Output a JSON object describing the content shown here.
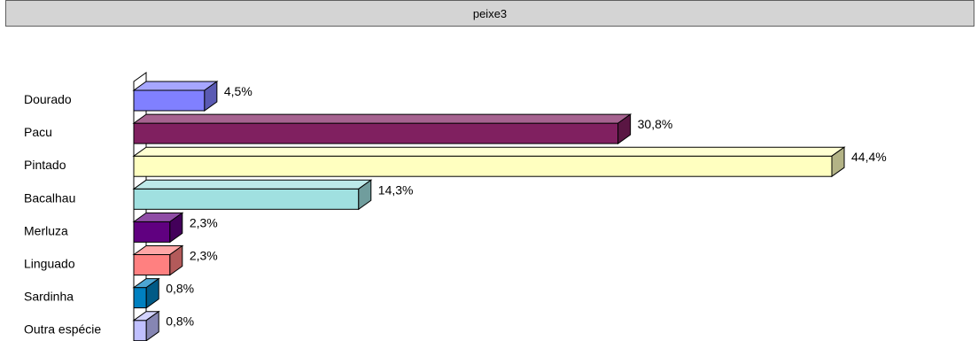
{
  "header": {
    "title": "peixe3"
  },
  "chart_data": {
    "type": "bar",
    "orientation": "horizontal",
    "style": "3d",
    "categories": [
      "Dourado",
      "Pacu",
      "Pintado",
      "Bacalhau",
      "Merluza",
      "Linguado",
      "Sardinha",
      "Outra espécie"
    ],
    "values": [
      4.5,
      30.8,
      44.4,
      14.3,
      2.3,
      2.3,
      0.8,
      0.8
    ],
    "data_labels": [
      "4,5%",
      "30,8%",
      "44,4%",
      "14,3%",
      "2,3%",
      "2,3%",
      "0,8%",
      "0,8%"
    ],
    "colors": [
      "#8080ff",
      "#802060",
      "#ffffc0",
      "#a0e0e0",
      "#600080",
      "#ff8080",
      "#0080c0",
      "#c0c0ff"
    ],
    "xlim": [
      0,
      44.4
    ],
    "grid": false,
    "legend": "none"
  }
}
